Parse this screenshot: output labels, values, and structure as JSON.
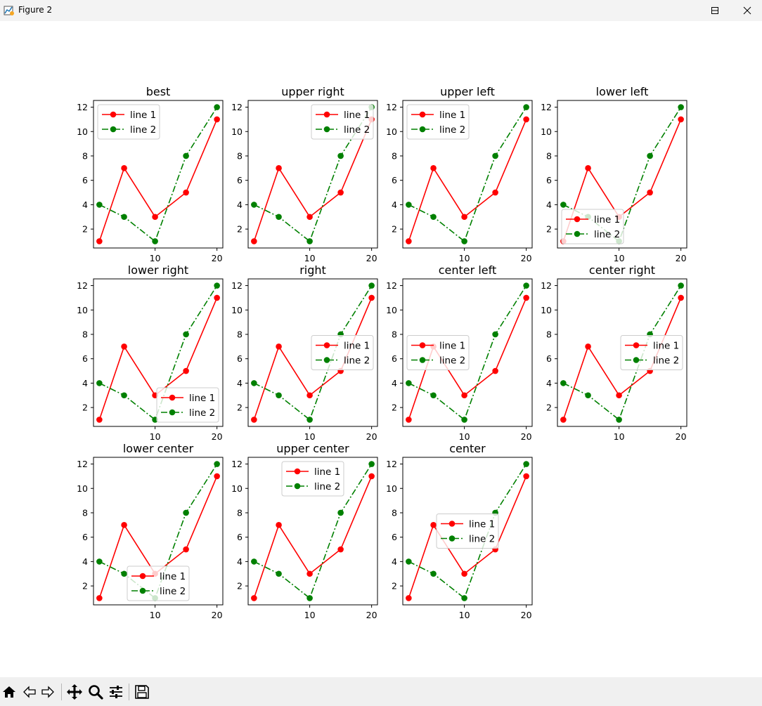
{
  "window": {
    "title": "Figure 2",
    "app_icon": "matplotlib-figure-icon",
    "controls": [
      "minimize-icon",
      "maximize-icon",
      "close-icon"
    ]
  },
  "toolbar": {
    "buttons": [
      "home-icon",
      "back-arrow-icon",
      "forward-arrow-icon",
      "pan-move-icon",
      "zoom-magnifier-icon",
      "configure-subplots-icon",
      "save-disk-icon"
    ]
  },
  "chart_data": {
    "type": "line",
    "grid": false,
    "layout": "3x4 subplot grid, 11 panels",
    "x": [
      1,
      5,
      10,
      15,
      20
    ],
    "xticks": [
      10,
      20
    ],
    "yticks": [
      2,
      4,
      6,
      8,
      10,
      12
    ],
    "xlim": [
      0.05,
      20.95
    ],
    "ylim": [
      0.45,
      12.55
    ],
    "series": [
      {
        "name": "line 1",
        "values": [
          1,
          7,
          3,
          5,
          11
        ],
        "color": "#ff0000",
        "linestyle": "solid",
        "marker": "circle"
      },
      {
        "name": "line 2",
        "values": [
          4,
          3,
          1,
          8,
          12
        ],
        "color": "#008000",
        "linestyle": "dash-dot",
        "marker": "circle"
      }
    ],
    "panels": [
      {
        "title": "best",
        "legend_loc": "upper left"
      },
      {
        "title": "upper right",
        "legend_loc": "upper right"
      },
      {
        "title": "upper left",
        "legend_loc": "upper left"
      },
      {
        "title": "lower left",
        "legend_loc": "lower left"
      },
      {
        "title": "lower right",
        "legend_loc": "lower right"
      },
      {
        "title": "right",
        "legend_loc": "center right"
      },
      {
        "title": "center left",
        "legend_loc": "center left"
      },
      {
        "title": "center right",
        "legend_loc": "center right"
      },
      {
        "title": "lower center",
        "legend_loc": "lower center"
      },
      {
        "title": "upper center",
        "legend_loc": "upper center"
      },
      {
        "title": "center",
        "legend_loc": "center"
      }
    ]
  }
}
